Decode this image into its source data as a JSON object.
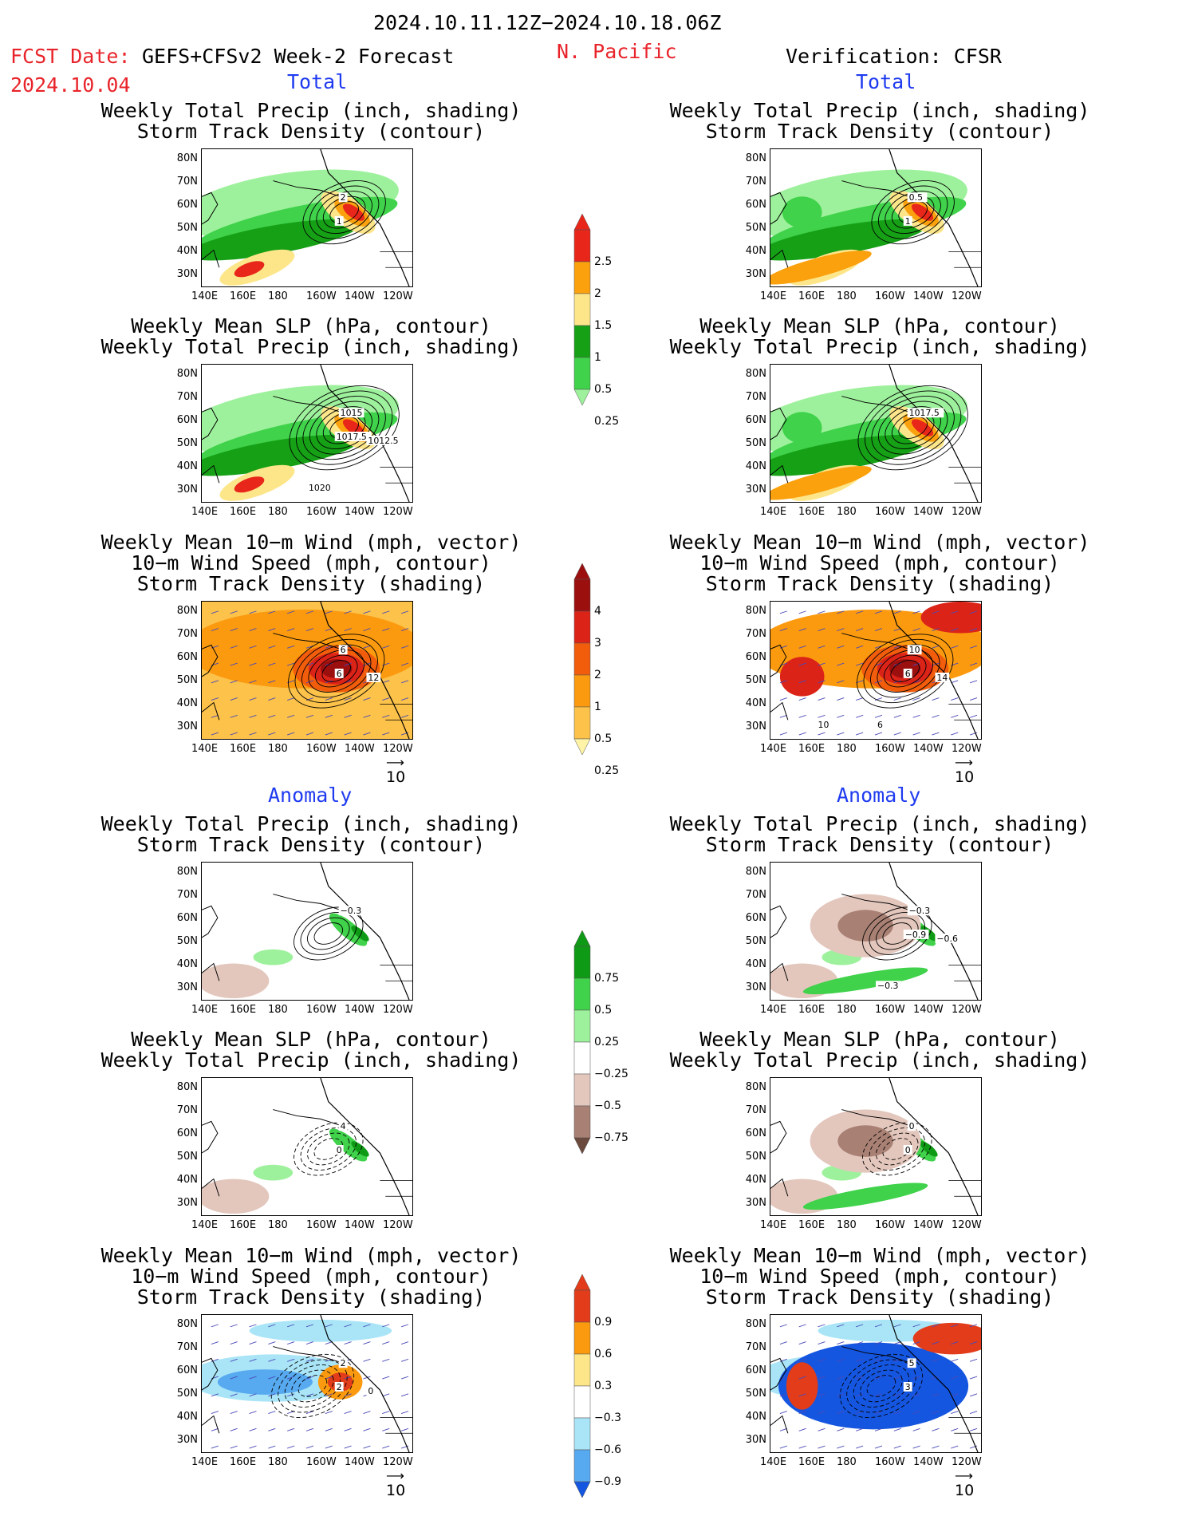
{
  "header": {
    "date_range": "2024.10.11.12Z−2024.10.18.06Z",
    "fcst_label": "FCST Date:",
    "fcst_model": "GEFS+CFSv2 Week-2 Forecast",
    "fcst_date": "2024.10.04",
    "region": "N. Pacific",
    "verification": "Verification: CFSR"
  },
  "sections": {
    "total": "Total",
    "anomaly": "Anomaly"
  },
  "panel_titles": {
    "precip_storm": [
      "Weekly Total Precip (inch, shading)",
      "Storm Track Density (contour)"
    ],
    "slp_precip": [
      "Weekly Mean SLP (hPa, contour)",
      "Weekly Total Precip (inch, shading)"
    ],
    "wind_storm": [
      "Weekly Mean 10−m Wind (mph, vector)",
      "10−m Wind Speed (mph, contour)",
      "Storm Track Density (shading)"
    ]
  },
  "axes": {
    "lat": [
      "80N",
      "70N",
      "60N",
      "50N",
      "40N",
      "30N"
    ],
    "lon": [
      "140E",
      "160E",
      "180",
      "160W",
      "140W",
      "120W"
    ]
  },
  "vector_ref": "10",
  "colorbars": {
    "precip_total": {
      "labels": [
        "2.5",
        "2",
        "1.5",
        "1",
        "0.5",
        "0.25"
      ],
      "colors": [
        "#e8261a",
        "#fba10e",
        "#fde68a",
        "#16a016",
        "#3fd24a",
        "#9ef19c"
      ]
    },
    "storm_total": {
      "labels": [
        "4",
        "3",
        "2",
        "1",
        "0.5",
        "0.25"
      ],
      "colors": [
        "#9b0f0f",
        "#db2318",
        "#f25d0c",
        "#fb9a0f",
        "#fcc24a",
        "#fef3a6"
      ]
    },
    "precip_anom": {
      "labels": [
        "0.75",
        "0.5",
        "0.25",
        "−0.25",
        "−0.5",
        "−0.75"
      ],
      "colors": [
        "#0f9a15",
        "#3fd24a",
        "#9ef19c",
        "#ffffff",
        "#e3c7bd",
        "#a98174",
        "#6b4a3d"
      ]
    },
    "storm_anom": {
      "labels": [
        "0.9",
        "0.6",
        "0.3",
        "−0.3",
        "−0.6",
        "−0.9"
      ],
      "colors": [
        "#e23c1a",
        "#fb9a0f",
        "#fde68a",
        "#ffffff",
        "#a9e5f7",
        "#57a9f0",
        "#1556e0"
      ]
    }
  },
  "contour_labels": {
    "fcst_precip_storm": [
      "2",
      "1"
    ],
    "fcst_slp": [
      "1015",
      "1017.5",
      "1012.5",
      "1020"
    ],
    "fcst_wind": [
      "6",
      "6",
      "12"
    ],
    "obs_precip_storm": [
      "0.5",
      "1"
    ],
    "obs_slp": [
      "1017.5"
    ],
    "obs_wind": [
      "10",
      "6",
      "14",
      "6",
      "10"
    ],
    "fcst_anom_precip": [
      "−0.3"
    ],
    "obs_anom_precip": [
      "−0.3",
      "−0.9",
      "−0.6",
      "−0.3"
    ],
    "fcst_anom_slp": [
      "4",
      "0"
    ],
    "obs_anom_slp": [
      "0",
      "0"
    ],
    "fcst_anom_wind": [
      "2",
      "2",
      "0"
    ],
    "obs_anom_wind": [
      "5",
      "3"
    ]
  }
}
